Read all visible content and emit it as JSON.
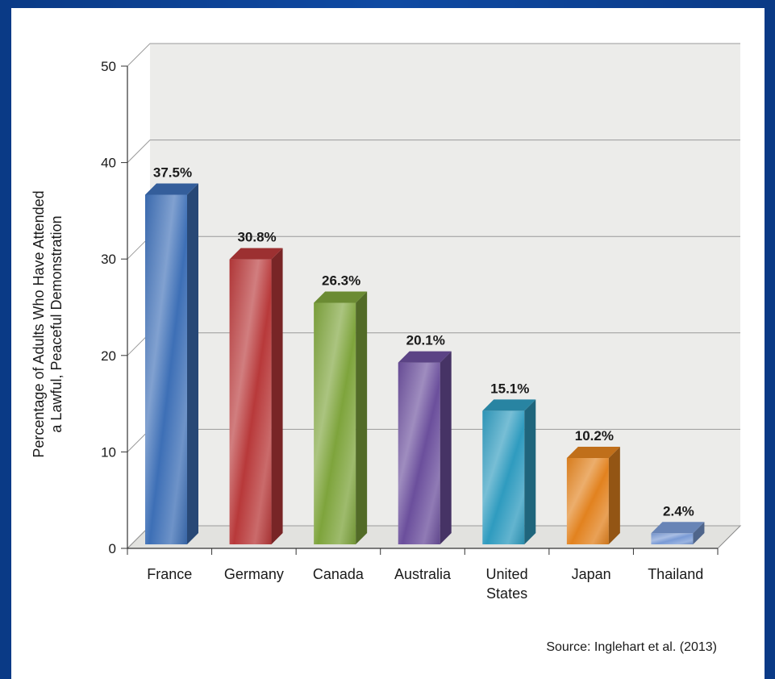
{
  "chart_data": {
    "type": "bar",
    "categories": [
      "France",
      "Germany",
      "Canada",
      "Australia",
      "United States",
      "Japan",
      "Thailand"
    ],
    "category_lines": [
      [
        "France"
      ],
      [
        "Germany"
      ],
      [
        "Canada"
      ],
      [
        "Australia"
      ],
      [
        "United",
        "States"
      ],
      [
        "Japan"
      ],
      [
        "Thailand"
      ]
    ],
    "values": [
      37.5,
      30.8,
      26.3,
      20.1,
      15.1,
      10.2,
      2.4
    ],
    "value_labels": [
      "37.5%",
      "30.8%",
      "26.3%",
      "20.1%",
      "15.1%",
      "10.2%",
      "2.4%"
    ],
    "colors": [
      "#3d6fb6",
      "#b8393a",
      "#7ea43c",
      "#6b4f9c",
      "#2f9bbf",
      "#e2821f",
      "#7a9bd6"
    ],
    "ylabel_lines": [
      "Percentage of Adults Who Have Attended",
      "a Lawful, Peaceful Demonstration"
    ],
    "ylim": [
      0,
      50
    ],
    "yticks": [
      0,
      10,
      20,
      30,
      40,
      50
    ],
    "grid": true,
    "source": "Source: Inglehart et al. (2013)"
  }
}
